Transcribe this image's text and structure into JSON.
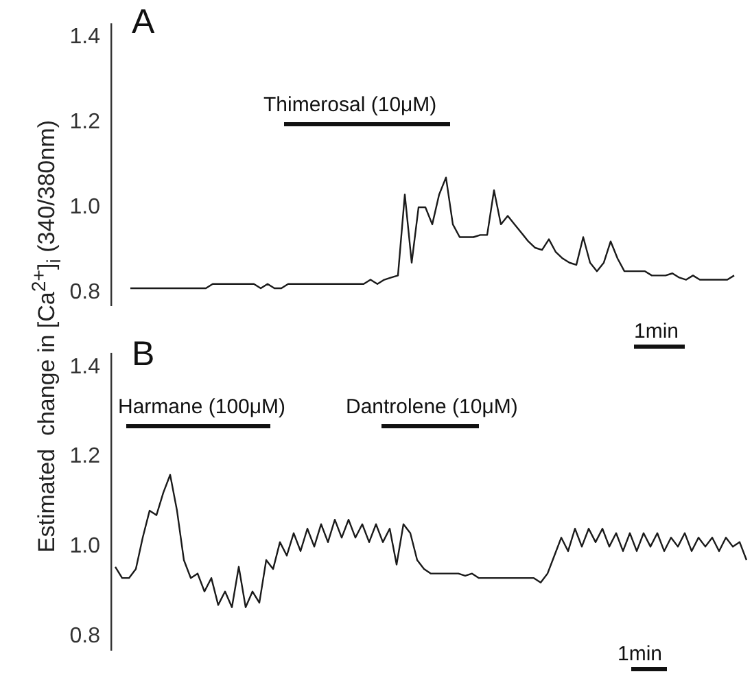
{
  "chart_data": [
    {
      "type": "line",
      "title": "A",
      "ylabel": "Estimated  change in [Ca$^{2+}$]$_{i}$ (340/380nm)",
      "categories": [
        null,
        null,
        null,
        null,
        null,
        null,
        null,
        null,
        null,
        null,
        null,
        null,
        null,
        null,
        null,
        null,
        null,
        null,
        null,
        null,
        null,
        null,
        null,
        null,
        null,
        null,
        null,
        null,
        null,
        null,
        null,
        null,
        null,
        null,
        null,
        null,
        null,
        null,
        null,
        null,
        null,
        null,
        null,
        null,
        null,
        null,
        null,
        null,
        null,
        null,
        null,
        null,
        null,
        null,
        null,
        null,
        null,
        null,
        null,
        null,
        null,
        null,
        null,
        null,
        null,
        null,
        null,
        null,
        null,
        null,
        null,
        null,
        null,
        null,
        null,
        null,
        null,
        null,
        null,
        null,
        null,
        null,
        null,
        null,
        null,
        null,
        null,
        null,
        null
      ],
      "series": [
        {
          "color": "#1a1a1a",
          "values": [
            0.81,
            0.81,
            0.81,
            0.81,
            0.81,
            0.81,
            0.81,
            0.81,
            0.81,
            0.81,
            0.81,
            0.81,
            0.82,
            0.82,
            0.82,
            0.82,
            0.82,
            0.82,
            0.82,
            0.81,
            0.82,
            0.81,
            0.81,
            0.82,
            0.82,
            0.82,
            0.82,
            0.82,
            0.82,
            0.82,
            0.82,
            0.82,
            0.82,
            0.82,
            0.82,
            0.83,
            0.82,
            0.83,
            0.835,
            0.84,
            1.03,
            0.87,
            1.0,
            1.0,
            0.96,
            1.03,
            1.07,
            0.96,
            0.93,
            0.93,
            0.93,
            0.935,
            0.935,
            1.04,
            0.96,
            0.98,
            0.96,
            0.94,
            0.92,
            0.905,
            0.9,
            0.925,
            0.895,
            0.88,
            0.87,
            0.865,
            0.93,
            0.87,
            0.85,
            0.87,
            0.92,
            0.88,
            0.85,
            0.85,
            0.85,
            0.85,
            0.84,
            0.84,
            0.84,
            0.845,
            0.835,
            0.83,
            0.84,
            0.83,
            0.83,
            0.83,
            0.83,
            0.83,
            0.84
          ]
        }
      ],
      "ylim": [
        0.77,
        1.43
      ],
      "yticks": [
        0.8,
        {
          "value": 1,
          "label": "1.0"
        },
        1.2,
        1.4
      ],
      "grid": false,
      "legend": false,
      "marker": "none",
      "tick_labels": "y",
      "annotations": [
        "Thimerosal (10μM)",
        "1min"
      ]
    },
    {
      "type": "line",
      "title": "B",
      "categories": [
        null,
        null,
        null,
        null,
        null,
        null,
        null,
        null,
        null,
        null,
        null,
        null,
        null,
        null,
        null,
        null,
        null,
        null,
        null,
        null,
        null,
        null,
        null,
        null,
        null,
        null,
        null,
        null,
        null,
        null,
        null,
        null,
        null,
        null,
        null,
        null,
        null,
        null,
        null,
        null,
        null,
        null,
        null,
        null,
        null,
        null,
        null,
        null,
        null,
        null,
        null,
        null,
        null,
        null,
        null,
        null,
        null,
        null,
        null,
        null,
        null,
        null,
        null,
        null,
        null,
        null,
        null,
        null,
        null,
        null,
        null,
        null,
        null,
        null,
        null,
        null,
        null,
        null,
        null,
        null,
        null,
        null,
        null,
        null,
        null,
        null,
        null,
        null,
        null,
        null,
        null,
        null,
        null
      ],
      "series": [
        {
          "color": "#1a1a1a",
          "values": [
            0.955,
            0.93,
            0.93,
            0.95,
            1.02,
            1.08,
            1.07,
            1.12,
            1.16,
            1.08,
            0.97,
            0.93,
            0.94,
            0.9,
            0.93,
            0.87,
            0.9,
            0.865,
            0.955,
            0.865,
            0.9,
            0.875,
            0.97,
            0.95,
            1.01,
            0.98,
            1.03,
            0.99,
            1.04,
            1.0,
            1.05,
            1.01,
            1.06,
            1.02,
            1.06,
            1.02,
            1.05,
            1.01,
            1.05,
            1.01,
            1.04,
            0.96,
            1.05,
            1.03,
            0.97,
            0.95,
            0.94,
            0.94,
            0.94,
            0.94,
            0.94,
            0.935,
            0.94,
            0.93,
            0.93,
            0.93,
            0.93,
            0.93,
            0.93,
            0.93,
            0.93,
            0.93,
            0.92,
            0.94,
            0.98,
            1.02,
            0.99,
            1.04,
            1.0,
            1.04,
            1.01,
            1.04,
            1.0,
            1.03,
            0.99,
            1.03,
            0.99,
            1.03,
            1.0,
            1.03,
            0.99,
            1.02,
            1.0,
            1.03,
            0.99,
            1.02,
            1.0,
            1.02,
            0.99,
            1.02,
            1.0,
            1.01,
            0.97
          ]
        }
      ],
      "ylim": [
        0.77,
        1.43
      ],
      "yticks": [
        0.8,
        {
          "value": 1,
          "label": "1.0"
        },
        1.2,
        1.4
      ],
      "grid": false,
      "legend": false,
      "marker": "none",
      "tick_labels": "y",
      "annotations": [
        "Harmane (100μM)",
        "Dantrolene (10μM)",
        "1min"
      ]
    }
  ]
}
